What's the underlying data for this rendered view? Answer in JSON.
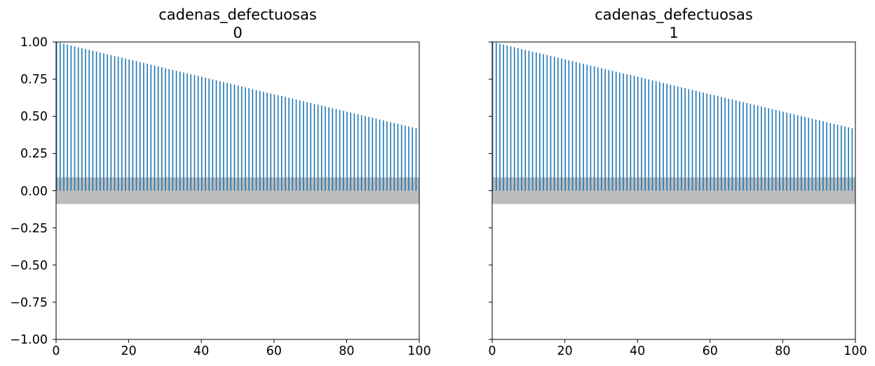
{
  "chart_data": [
    {
      "type": "bar",
      "subtype": "autocorrelation",
      "title": "cadenas_defectuosas",
      "subtitle": "0",
      "xlim": [
        0,
        100
      ],
      "ylim": [
        -1.0,
        1.0
      ],
      "xticks": [
        "0",
        "20",
        "40",
        "60",
        "80",
        "100"
      ],
      "yticks": [
        "1.00",
        "0.75",
        "0.50",
        "0.25",
        "0.00",
        "−0.25",
        "−0.50",
        "−0.75",
        "−1.00"
      ],
      "lags": {
        "start": 0,
        "end": 99
      },
      "acf_start": 1.0,
      "acf_end": 0.42,
      "confidence_band": [
        -0.09,
        0.09
      ],
      "grid": false,
      "colors": {
        "stem": "#1f77b4",
        "band": "#bdbdbd"
      }
    },
    {
      "type": "bar",
      "subtype": "autocorrelation",
      "title": "cadenas_defectuosas",
      "subtitle": "1",
      "xlim": [
        0,
        100
      ],
      "ylim": [
        -1.0,
        1.0
      ],
      "xticks": [
        "0",
        "20",
        "40",
        "60",
        "80",
        "100"
      ],
      "yticks": [],
      "lags": {
        "start": 0,
        "end": 99
      },
      "acf_start": 1.0,
      "acf_end": 0.42,
      "confidence_band": [
        -0.09,
        0.09
      ],
      "grid": false,
      "colors": {
        "stem": "#1f77b4",
        "band": "#bdbdbd"
      }
    }
  ]
}
